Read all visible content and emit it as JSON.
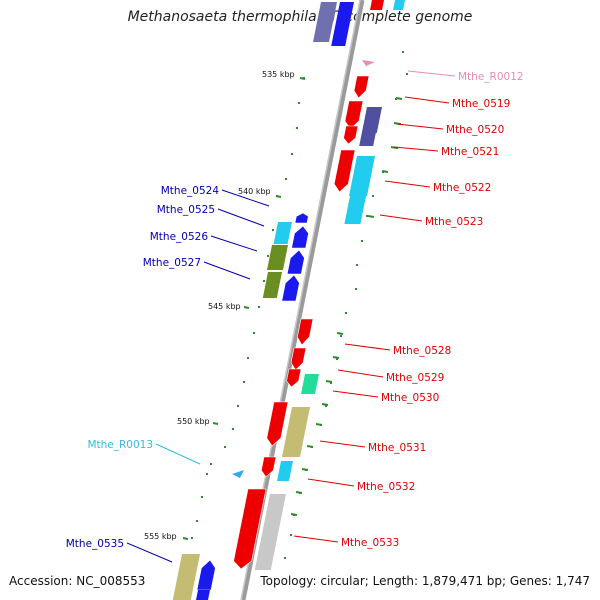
{
  "title": "Methanosaeta thermophila PT, complete genome",
  "footer": {
    "accession": "Accession: NC_008553",
    "topology": "Topology: circular; Length: 1,879,471 bp; Genes: 1,747"
  },
  "colors": {
    "backbone": "#8a8a8a",
    "tick": "#2e8b2e",
    "right_label": "#e00000",
    "left_label": "#0000b0",
    "rna_right_label": "#e88ab8",
    "rna_left_label": "#33bbdd"
  },
  "scale_labels": [
    "535 kbp",
    "540 kbp",
    "545 kbp",
    "550 kbp",
    "555 kbp"
  ],
  "gene_labels": [
    {
      "id": "Mthe_R0012",
      "side": "right",
      "kind": "rna"
    },
    {
      "id": "Mthe_0519",
      "side": "right",
      "kind": "gene"
    },
    {
      "id": "Mthe_0520",
      "side": "right",
      "kind": "gene"
    },
    {
      "id": "Mthe_0521",
      "side": "right",
      "kind": "gene"
    },
    {
      "id": "Mthe_0522",
      "side": "right",
      "kind": "gene"
    },
    {
      "id": "Mthe_0523",
      "side": "right",
      "kind": "gene"
    },
    {
      "id": "Mthe_0524",
      "side": "left",
      "kind": "gene"
    },
    {
      "id": "Mthe_0525",
      "side": "left",
      "kind": "gene"
    },
    {
      "id": "Mthe_0526",
      "side": "left",
      "kind": "gene"
    },
    {
      "id": "Mthe_0527",
      "side": "left",
      "kind": "gene"
    },
    {
      "id": "Mthe_0528",
      "side": "right",
      "kind": "gene"
    },
    {
      "id": "Mthe_0529",
      "side": "right",
      "kind": "gene"
    },
    {
      "id": "Mthe_0530",
      "side": "right",
      "kind": "gene"
    },
    {
      "id": "Mthe_0531",
      "side": "right",
      "kind": "gene"
    },
    {
      "id": "Mthe_R0013",
      "side": "left",
      "kind": "rna"
    },
    {
      "id": "Mthe_0532",
      "side": "right",
      "kind": "gene"
    },
    {
      "id": "Mthe_0533",
      "side": "right",
      "kind": "gene"
    },
    {
      "id": "Mthe_0535",
      "side": "left",
      "kind": "gene"
    }
  ]
}
